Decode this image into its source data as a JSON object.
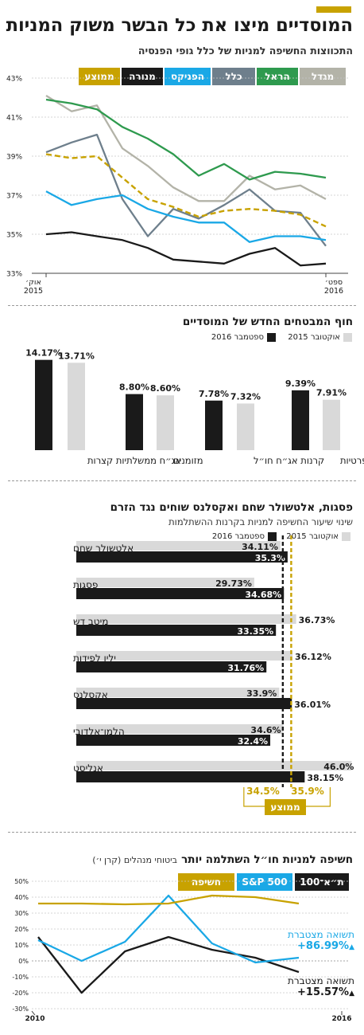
{
  "headline": "המוסדיים מיצו את כל הבשר משוק המניות",
  "subheadline": "התכווצות החשיפה למניות של כלל גופי הפנסיה",
  "colors": {
    "migdal": "#b3b3a8",
    "harel": "#2e9a4e",
    "clal": "#6e7f8c",
    "phoenix": "#1aa8e6",
    "menora": "#1a1a1a",
    "average": "#c8a200",
    "light_bar": "#d9d9d9",
    "dark_bar": "#1a1a1a",
    "ta100": "#1a1a1a",
    "sp500": "#1aa8e6",
    "exposure": "#c8a200"
  },
  "chart1_legend": [
    "מגדל",
    "הראל",
    "כלל",
    "הפניקס",
    "מנורה",
    "ממוצע"
  ],
  "chart1_x_start": "אוק׳ 2015",
  "chart1_x_end": "ספט׳ 2016",
  "section2_title": "חוף המבטחים החדש של המוסדיים",
  "section3_title": "פסגות, אלטשולר שחם ואקסלנס שוחים נגד הזרם",
  "section3_subtitle": "שינוי שיעור החשיפה למניות בקרנות ההשתלמות",
  "legend_oct2015": "אוקטובר 2015",
  "legend_sep2016": "ספטמבר 2016",
  "avg_box_label": "ממוצע",
  "avg_oct_label": "34.5%",
  "avg_sep_label": "35.9%",
  "section4_title": "חשיפה למניות חו״ל השתלמה יותר",
  "section4_note": "ביטוחי מנהלים (קרן י׳)",
  "chart4_legend": [
    "ת״א־100",
    "S&P 500",
    "חשיפה"
  ],
  "chart4_x_start": "2010",
  "chart4_x_end": "2016",
  "cum_return_label": "תשואה מצטברת",
  "cum_return_sp": "+86.99%",
  "cum_return_ta": "+15.57%",
  "chart_data": [
    {
      "type": "line",
      "title": "התכווצות החשיפה למניות של כלל גופי הפנסיה",
      "y_tick_labels": [
        "33%",
        "35%",
        "37%",
        "39%",
        "41%",
        "43%"
      ],
      "ylim": [
        33,
        43
      ],
      "x_range": [
        "אוק׳ 2015",
        "ספט׳ 2016"
      ],
      "grid": true,
      "legend_position": "top",
      "series": [
        {
          "name": "מגדל",
          "values": [
            42.1,
            41.3,
            41.6,
            39.4,
            38.5,
            37.4,
            36.7,
            36.7,
            38.0,
            37.3,
            37.5,
            36.8
          ]
        },
        {
          "name": "הראל",
          "values": [
            41.9,
            41.7,
            41.4,
            40.5,
            39.9,
            39.1,
            38.0,
            38.6,
            37.8,
            38.2,
            38.1,
            37.9
          ]
        },
        {
          "name": "כלל",
          "values": [
            39.2,
            39.7,
            40.1,
            36.8,
            34.9,
            36.3,
            35.8,
            36.5,
            37.3,
            36.2,
            36.1,
            34.4
          ]
        },
        {
          "name": "הפניקס",
          "values": [
            37.2,
            36.5,
            36.8,
            37.0,
            36.3,
            35.9,
            35.6,
            35.6,
            34.6,
            34.9,
            34.9,
            34.7
          ]
        },
        {
          "name": "מנורה",
          "values": [
            35.0,
            35.1,
            34.9,
            34.7,
            34.3,
            33.7,
            33.6,
            33.5,
            34.0,
            34.3,
            33.4,
            33.5
          ]
        },
        {
          "name": "ממוצע",
          "dashed": true,
          "values": [
            39.1,
            38.9,
            39.0,
            37.9,
            36.8,
            36.4,
            35.9,
            36.2,
            36.3,
            36.2,
            36.0,
            35.4
          ]
        }
      ]
    },
    {
      "type": "bar",
      "title": "חוף המבטחים החדש של המוסדיים",
      "categories": [
        "אג״ח ממשלתיות קצרות",
        "מזומנים",
        "קרנות אג״ח חו״ל",
        "הלוואות פרטיות"
      ],
      "series": [
        {
          "name": "אוקטובר 2015",
          "values": [
            13.71,
            8.6,
            7.32,
            7.91
          ],
          "labels": [
            "13.71%",
            "8.60%",
            "7.32%",
            "7.91%"
          ]
        },
        {
          "name": "ספטמבר 2016",
          "values": [
            14.17,
            8.8,
            7.78,
            9.39
          ],
          "labels": [
            "14.17%",
            "8.80%",
            "7.78%",
            "9.39%"
          ]
        }
      ],
      "ylim": [
        0,
        15
      ],
      "legend_position": "top-right"
    },
    {
      "type": "bar",
      "orientation": "horizontal",
      "title": "פסגות, אלטשולר שחם ואקסלנס שוחים נגד הזרם",
      "subtitle": "שינוי שיעור החשיפה למניות בקרנות ההשתלמות",
      "categories": [
        "אלטשולר שחם",
        "פסגות",
        "מיטב דש",
        "ילין לפידות",
        "אקסלנס",
        "הלמן־אלדובי",
        "אנליסט"
      ],
      "series": [
        {
          "name": "אוקטובר 2015",
          "values": [
            34.11,
            29.73,
            36.73,
            36.12,
            33.9,
            34.6,
            46.0
          ],
          "labels": [
            "34.11%",
            "29.73%",
            "36.73%",
            "36.12%",
            "33.9%",
            "34.6%",
            "46.0%"
          ]
        },
        {
          "name": "ספטמבר 2016",
          "values": [
            35.3,
            34.68,
            33.35,
            31.76,
            36.01,
            32.4,
            38.15
          ],
          "labels": [
            "35.3%",
            "34.68%",
            "33.35%",
            "31.76%",
            "36.01%",
            "32.4%",
            "38.15%"
          ]
        }
      ],
      "averages": [
        {
          "name": "אוקטובר 2015",
          "value": 34.5
        },
        {
          "name": "ספטמבר 2016",
          "value": 35.9
        }
      ],
      "xlim": [
        0,
        47
      ],
      "legend_position": "top-right"
    },
    {
      "type": "line",
      "title": "חשיפה למניות חו״ל השתלמה יותר",
      "y_tick_labels": [
        "-30%",
        "-20%",
        "-10%",
        "0%",
        "10%",
        "20%",
        "30%",
        "40%",
        "50%"
      ],
      "ylim": [
        -30,
        50
      ],
      "x": [
        2010,
        2011,
        2012,
        2013,
        2014,
        2015,
        2016
      ],
      "grid": true,
      "legend_position": "top-right",
      "series": [
        {
          "name": "ת״א־100",
          "values": [
            15,
            -20,
            6,
            15,
            7,
            2,
            -7
          ]
        },
        {
          "name": "S&P 500",
          "values": [
            13,
            0,
            12,
            41,
            11,
            -1,
            2
          ]
        },
        {
          "name": "חשיפה",
          "values": [
            36,
            36,
            35.5,
            36,
            41,
            40,
            36
          ]
        }
      ]
    }
  ]
}
